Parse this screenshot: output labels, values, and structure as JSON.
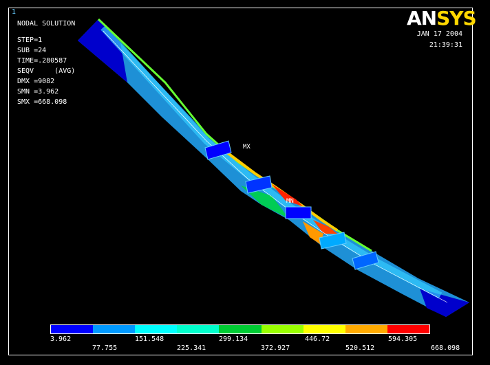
{
  "window_number": "1",
  "logo": {
    "an": "AN",
    "sys": "SYS"
  },
  "info": {
    "title": "NODAL SOLUTION",
    "step": "STEP=1",
    "sub": "SUB =24",
    "time": "TIME=.280587",
    "seqv": "SEQV     (AVG)",
    "dmx": "DMX =9082",
    "smn": "SMN =3.962",
    "smx": "SMX =668.098"
  },
  "date": "JAN 17 2004",
  "time_of_day": "21:39:31",
  "markers": {
    "mx": "MX",
    "mn": "MN"
  },
  "legend": {
    "colors": [
      "#0000ff",
      "#0099ff",
      "#00ffff",
      "#00ffcc",
      "#00cc33",
      "#99ff00",
      "#ffff00",
      "#ffaa00",
      "#ff0000"
    ],
    "top_labels": [
      "3.962",
      "151.548",
      "299.134",
      "446.72",
      "594.305"
    ],
    "bottom_labels": [
      "77.755",
      "225.341",
      "372.927",
      "520.512",
      "668.098"
    ]
  }
}
